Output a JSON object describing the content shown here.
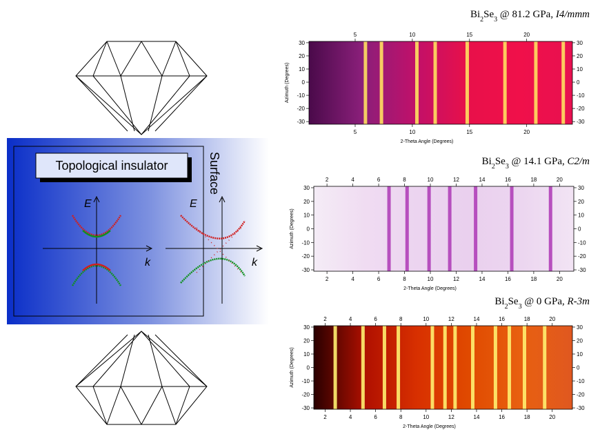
{
  "schematic": {
    "label": "Topological insulator",
    "surface": "Surface",
    "left_axes": {
      "e": "E",
      "k": "k"
    },
    "right_axes": {
      "e": "E",
      "k": "k"
    }
  },
  "panels": [
    {
      "title": [
        "Bi",
        "2",
        "Se",
        "3",
        " @ 81.2 GPa, ",
        "I4/mmm"
      ],
      "xlabel": "2-Theta Angle (Degrees)",
      "ylabel": "Azimuth (Degrees)",
      "xlim": [
        0.96,
        24.0
      ],
      "xticks": [
        5,
        10,
        15,
        20
      ],
      "ylim": [
        -32,
        31
      ],
      "yticks": [
        -30,
        -20,
        -10,
        0,
        10,
        20,
        30
      ],
      "background": [
        "#4a0a4a",
        "#8a1f7a",
        "#c0106a",
        "#e8104a",
        "#f0104a",
        "#e81050"
      ],
      "line_color": "#ffe060",
      "lines": [
        5.9,
        7.3,
        10.4,
        12.0,
        14.8,
        18.1,
        20.8,
        23.2
      ]
    },
    {
      "title": [
        "Bi",
        "2",
        "Se",
        "3",
        " @ 14.1 GPa, ",
        "C2/m"
      ],
      "xlabel": "2-Theta Angle (Degrees)",
      "ylabel": "Azimuth (Degrees)",
      "xlim": [
        0.98,
        21.1
      ],
      "xticks": [
        2,
        4,
        6,
        8,
        10,
        12,
        14,
        16,
        18,
        20
      ],
      "ylim": [
        -31,
        31
      ],
      "yticks": [
        -30,
        -20,
        -10,
        0,
        10,
        20,
        30
      ],
      "background": [
        "#f4ecf6",
        "#f0dcf2",
        "#ecd4f0",
        "#ead0ee",
        "#ecd6f0",
        "#f2e4f4"
      ],
      "line_color": "#b040b8",
      "lines": [
        6.8,
        8.2,
        9.9,
        11.5,
        13.5,
        16.3,
        19.3
      ]
    },
    {
      "title": [
        "Bi",
        "2",
        "Se",
        "3",
        " @ 0 GPa, ",
        "R-3m"
      ],
      "xlabel": "2-Theta Angle (Degrees)",
      "ylabel": "Azimuth (Degrees)",
      "xlim": [
        1.1,
        21.6
      ],
      "xticks": [
        2,
        4,
        6,
        8,
        10,
        12,
        14,
        16,
        18,
        20
      ],
      "ylim": [
        -31,
        31
      ],
      "yticks": [
        -30,
        -20,
        -10,
        0,
        10,
        20,
        30
      ],
      "background": [
        "#2a0000",
        "#b01000",
        "#d83000",
        "#e04a00",
        "#e86010",
        "#e05820"
      ],
      "line_color": "#fff070",
      "lines": [
        2.8,
        5.0,
        6.7,
        7.8,
        10.5,
        11.5,
        12.3,
        13.7,
        15.5,
        16.6,
        17.8,
        19.4
      ]
    }
  ]
}
